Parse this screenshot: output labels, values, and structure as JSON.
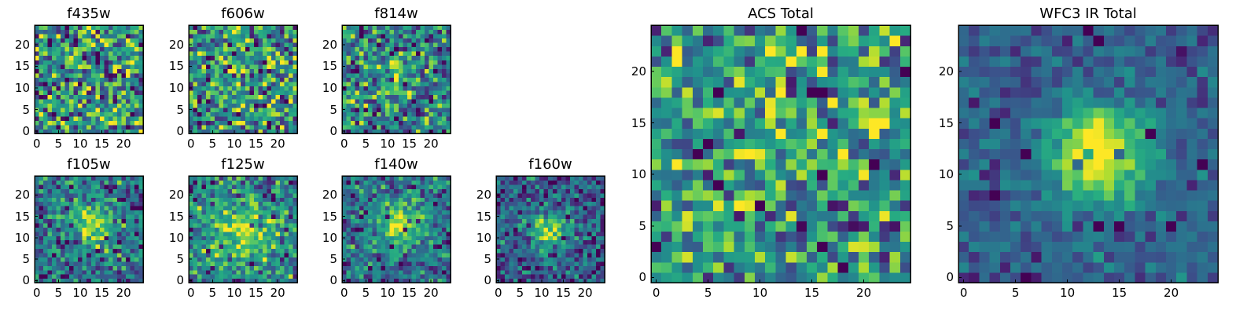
{
  "colors": {
    "colormap": "viridis",
    "frame": "#000000",
    "background": "#ffffff"
  },
  "chart_data": [
    {
      "type": "heatmap",
      "title": "f435w",
      "grid_size": [
        25,
        25
      ],
      "xticks": [
        0,
        5,
        10,
        15,
        20
      ],
      "yticks": [
        0,
        5,
        10,
        15,
        20
      ],
      "xlim": [
        -0.5,
        24.5
      ],
      "ylim": [
        -0.5,
        24.5
      ],
      "colormap": "viridis",
      "pattern": "noise, no central source",
      "grid": false
    },
    {
      "type": "heatmap",
      "title": "f606w",
      "grid_size": [
        25,
        25
      ],
      "xticks": [
        0,
        5,
        10,
        15,
        20
      ],
      "yticks": [
        0,
        5,
        10,
        15,
        20
      ],
      "xlim": [
        -0.5,
        24.5
      ],
      "ylim": [
        -0.5,
        24.5
      ],
      "colormap": "viridis",
      "pattern": "noise with weak central excess",
      "grid": false
    },
    {
      "type": "heatmap",
      "title": "f814w",
      "grid_size": [
        25,
        25
      ],
      "xticks": [
        0,
        5,
        10,
        15,
        20
      ],
      "yticks": [
        0,
        5,
        10,
        15,
        20
      ],
      "xlim": [
        -0.5,
        24.5
      ],
      "ylim": [
        -0.5,
        24.5
      ],
      "colormap": "viridis",
      "pattern": "noise with faint central source",
      "grid": false
    },
    {
      "type": "heatmap",
      "title": "f105w",
      "grid_size": [
        25,
        25
      ],
      "xticks": [
        0,
        5,
        10,
        15,
        20
      ],
      "yticks": [
        0,
        5,
        10,
        15,
        20
      ],
      "xlim": [
        -0.5,
        24.5
      ],
      "ylim": [
        -0.5,
        24.5
      ],
      "colormap": "viridis",
      "pattern": "central source near (13, 13)",
      "grid": false
    },
    {
      "type": "heatmap",
      "title": "f125w",
      "grid_size": [
        25,
        25
      ],
      "xticks": [
        0,
        5,
        10,
        15,
        20
      ],
      "yticks": [
        0,
        5,
        10,
        15,
        20
      ],
      "xlim": [
        -0.5,
        24.5
      ],
      "ylim": [
        -0.5,
        24.5
      ],
      "colormap": "viridis",
      "pattern": "diffuse central source",
      "grid": false
    },
    {
      "type": "heatmap",
      "title": "f140w",
      "grid_size": [
        25,
        25
      ],
      "xticks": [
        0,
        5,
        10,
        15,
        20
      ],
      "yticks": [
        0,
        5,
        10,
        15,
        20
      ],
      "xlim": [
        -0.5,
        24.5
      ],
      "ylim": [
        -0.5,
        24.5
      ],
      "colormap": "viridis",
      "pattern": "central source near (13, 13)",
      "grid": false
    },
    {
      "type": "heatmap",
      "title": "f160w",
      "grid_size": [
        25,
        25
      ],
      "xticks": [
        0,
        5,
        10,
        15,
        20
      ],
      "yticks": [
        0,
        5,
        10,
        15,
        20
      ],
      "xlim": [
        -0.5,
        24.5
      ],
      "ylim": [
        -0.5,
        24.5
      ],
      "colormap": "viridis",
      "pattern": "compact central source near (12, 12)",
      "grid": false
    },
    {
      "type": "heatmap",
      "title": "ACS Total",
      "grid_size": [
        25,
        25
      ],
      "xticks": [
        0,
        5,
        10,
        15,
        20
      ],
      "yticks": [
        0,
        5,
        10,
        15,
        20
      ],
      "xlim": [
        -0.5,
        24.5
      ],
      "ylim": [
        -0.5,
        24.5
      ],
      "colormap": "viridis",
      "pattern": "noise with weak central excess",
      "grid": false
    },
    {
      "type": "heatmap",
      "title": "WFC3 IR Total",
      "grid_size": [
        25,
        25
      ],
      "xticks": [
        0,
        5,
        10,
        15,
        20
      ],
      "yticks": [
        0,
        5,
        10,
        15,
        20
      ],
      "xlim": [
        -0.5,
        24.5
      ],
      "ylim": [
        -0.5,
        24.5
      ],
      "colormap": "viridis",
      "pattern": "bright central source near (13, 12)",
      "grid": false
    }
  ]
}
